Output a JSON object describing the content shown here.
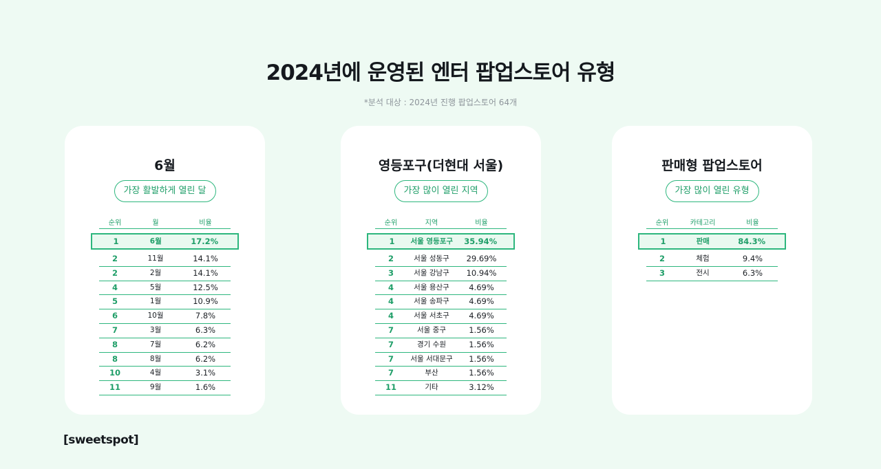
{
  "title": "2024년에 운영된 엔터 팝업스토어 유형",
  "subtitle": "*분석 대상 : 2024년 진행 팝업스토어 64개",
  "logo": "[sweetspot]",
  "accent_color": "#2cb67d",
  "cards": [
    {
      "title": "6월",
      "badge": "가장 활발하게 열린 달",
      "headers": [
        "순위",
        "월",
        "비율"
      ],
      "rows": [
        [
          "1",
          "6월",
          "17.2%"
        ],
        [
          "2",
          "11월",
          "14.1%"
        ],
        [
          "2",
          "2월",
          "14.1%"
        ],
        [
          "4",
          "5월",
          "12.5%"
        ],
        [
          "5",
          "1월",
          "10.9%"
        ],
        [
          "6",
          "10월",
          "7.8%"
        ],
        [
          "7",
          "3월",
          "6.3%"
        ],
        [
          "8",
          "7월",
          "6.2%"
        ],
        [
          "8",
          "8월",
          "6.2%"
        ],
        [
          "10",
          "4월",
          "3.1%"
        ],
        [
          "11",
          "9월",
          "1.6%"
        ]
      ]
    },
    {
      "title": "영등포구(더현대 서울)",
      "badge": "가장 많이 열린 지역",
      "headers": [
        "순위",
        "지역",
        "비율"
      ],
      "rows": [
        [
          "1",
          "서울 영등포구",
          "35.94%"
        ],
        [
          "2",
          "서울 성동구",
          "29.69%"
        ],
        [
          "3",
          "서울 강남구",
          "10.94%"
        ],
        [
          "4",
          "서울 용산구",
          "4.69%"
        ],
        [
          "4",
          "서울 송파구",
          "4.69%"
        ],
        [
          "4",
          "서울 서초구",
          "4.69%"
        ],
        [
          "7",
          "서울 중구",
          "1.56%"
        ],
        [
          "7",
          "경기 수원",
          "1.56%"
        ],
        [
          "7",
          "서울 서대문구",
          "1.56%"
        ],
        [
          "7",
          "부산",
          "1.56%"
        ],
        [
          "11",
          "기타",
          "3.12%"
        ]
      ]
    },
    {
      "title": "판매형 팝업스토어",
      "badge": "가장 많이 열린 유형",
      "headers": [
        "순위",
        "카테고리",
        "비율"
      ],
      "rows": [
        [
          "1",
          "판매",
          "84.3%"
        ],
        [
          "2",
          "체험",
          "9.4%"
        ],
        [
          "3",
          "전시",
          "6.3%"
        ]
      ]
    }
  ]
}
